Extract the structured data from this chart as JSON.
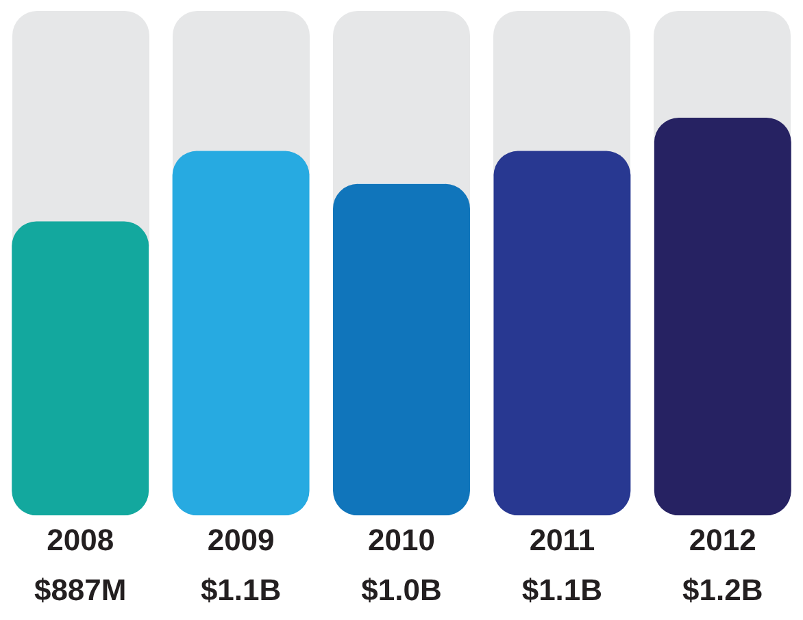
{
  "chart_data": {
    "type": "bar",
    "categories": [
      "2008",
      "2009",
      "2010",
      "2011",
      "2012"
    ],
    "tick_labels": "x",
    "values": [
      887000000,
      1100000000,
      1000000000,
      1100000000,
      1200000000
    ],
    "colors": [
      "#13a89e",
      "#27aae1",
      "#1075bb",
      "#283891",
      "#262262"
    ],
    "value_labels": [
      "$887M",
      "$1.1B",
      "$1.0B",
      "$1.1B",
      "$1.2B"
    ],
    "grid": false,
    "legend": false
  }
}
